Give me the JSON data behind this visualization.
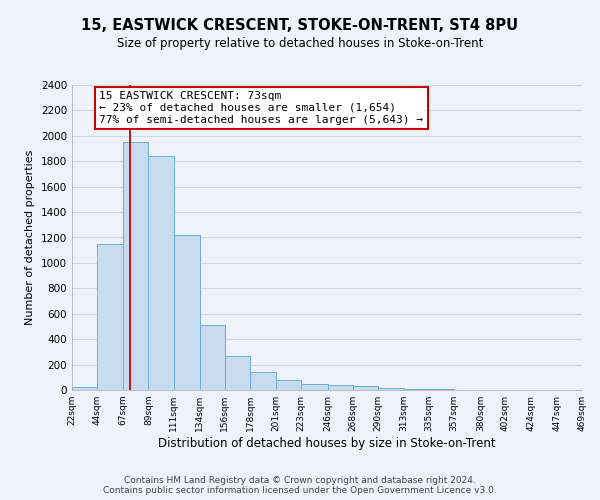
{
  "title": "15, EASTWICK CRESCENT, STOKE-ON-TRENT, ST4 8PU",
  "subtitle": "Size of property relative to detached houses in Stoke-on-Trent",
  "xlabel": "Distribution of detached houses by size in Stoke-on-Trent",
  "ylabel": "Number of detached properties",
  "bar_edges": [
    22,
    44,
    67,
    89,
    111,
    134,
    156,
    178,
    201,
    223,
    246,
    268,
    290,
    313,
    335,
    357,
    380,
    402,
    424,
    447,
    469
  ],
  "bar_heights": [
    25,
    1150,
    1950,
    1840,
    1220,
    515,
    265,
    145,
    75,
    50,
    38,
    35,
    12,
    8,
    5,
    3,
    2,
    1,
    1,
    1,
    0
  ],
  "bar_color": "#c8dcf0",
  "bar_edge_color": "#6baed6",
  "property_line_x": 73,
  "property_line_color": "#cc0000",
  "annotation_title": "15 EASTWICK CRESCENT: 73sqm",
  "annotation_line1": "← 23% of detached houses are smaller (1,654)",
  "annotation_line2": "77% of semi-detached houses are larger (5,643) →",
  "annotation_box_color": "#ffffff",
  "annotation_box_edge": "#cc0000",
  "ylim": [
    0,
    2400
  ],
  "yticks": [
    0,
    200,
    400,
    600,
    800,
    1000,
    1200,
    1400,
    1600,
    1800,
    2000,
    2200,
    2400
  ],
  "tick_labels": [
    "22sqm",
    "44sqm",
    "67sqm",
    "89sqm",
    "111sqm",
    "134sqm",
    "156sqm",
    "178sqm",
    "201sqm",
    "223sqm",
    "246sqm",
    "268sqm",
    "290sqm",
    "313sqm",
    "335sqm",
    "357sqm",
    "380sqm",
    "402sqm",
    "424sqm",
    "447sqm",
    "469sqm"
  ],
  "footer_line1": "Contains HM Land Registry data © Crown copyright and database right 2024.",
  "footer_line2": "Contains public sector information licensed under the Open Government Licence v3.0.",
  "bg_color": "#eef2fb",
  "grid_color": "#d0d8e8",
  "title_fontsize": 10.5,
  "subtitle_fontsize": 8.5,
  "xlabel_fontsize": 8.5,
  "ylabel_fontsize": 8,
  "footer_fontsize": 6.5,
  "ann_fontsize": 8,
  "tick_fontsize": 6.5,
  "ytick_fontsize": 7.5
}
